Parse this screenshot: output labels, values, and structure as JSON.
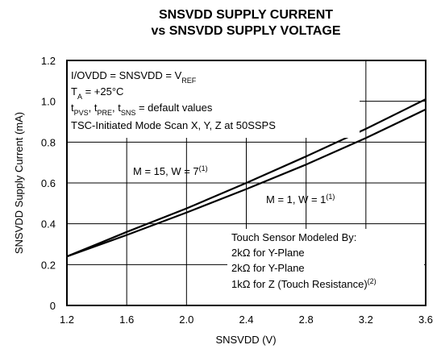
{
  "chart_data": {
    "type": "line",
    "title": [
      "SNSVDD SUPPLY CURRENT",
      "vs SNSVDD SUPPLY VOLTAGE"
    ],
    "x_label": "SNSVDD (V)",
    "y_label": "SNSVDD Supply Current (mA)",
    "x": [
      1.2,
      1.6,
      2.0,
      2.4,
      2.8,
      3.2,
      3.6
    ],
    "series": [
      {
        "name": "M = 15, W = 7",
        "color": "#000000",
        "values": [
          0.24,
          0.36,
          0.475,
          0.6,
          0.73,
          0.865,
          1.01
        ]
      },
      {
        "name": "M = 1, W = 1",
        "color": "#000000",
        "values": [
          0.24,
          0.345,
          0.455,
          0.57,
          0.69,
          0.82,
          0.96
        ]
      }
    ],
    "xlim": [
      1.2,
      3.6
    ],
    "ylim": [
      0,
      1.2
    ],
    "xticks": [
      1.2,
      1.6,
      {
        "value": 2,
        "label": "2.0"
      },
      2.4,
      2.8,
      3.2,
      3.6
    ],
    "yticks": [
      0,
      0.2,
      0.4,
      0.6,
      0.8,
      {
        "value": 1,
        "label": "1.0"
      },
      1.2
    ],
    "grid": true,
    "annotations": [
      {
        "parts": [
          {
            "text": "I/OVDD = SNSVDD = V"
          },
          {
            "text": "REF",
            "sub": true
          }
        ]
      },
      {
        "parts": [
          {
            "text": "T"
          },
          {
            "text": "A",
            "sub": true
          },
          {
            "text": " = +25°C"
          }
        ]
      },
      {
        "parts": [
          {
            "text": "t"
          },
          {
            "text": "PVS",
            "sub": true
          },
          {
            "text": ", t"
          },
          {
            "text": "PRE",
            "sub": true
          },
          {
            "text": ", t"
          },
          {
            "text": "SNS",
            "sub": true
          },
          {
            "text": " = default values"
          }
        ]
      },
      {
        "parts": [
          {
            "text": "TSC-Initiated Mode Scan X, Y, Z at 50SSPS"
          }
        ]
      },
      {
        "parts": [
          {
            "text": "M = 15, W = 7"
          },
          {
            "text": "(1)",
            "sup": true
          }
        ]
      },
      {
        "parts": [
          {
            "text": "M = 1, W = 1"
          },
          {
            "text": "(1)",
            "sup": true
          }
        ]
      },
      {
        "parts": [
          {
            "text": "Touch Sensor Modeled By:"
          }
        ]
      },
      {
        "parts": [
          {
            "text": "2kΩ for Y-Plane"
          }
        ]
      },
      {
        "parts": [
          {
            "text": "2kΩ for Y-Plane"
          }
        ]
      },
      {
        "parts": [
          {
            "text": "1kΩ for Z (Touch Resistance)"
          },
          {
            "text": "(2)",
            "sup": true
          }
        ]
      }
    ]
  }
}
